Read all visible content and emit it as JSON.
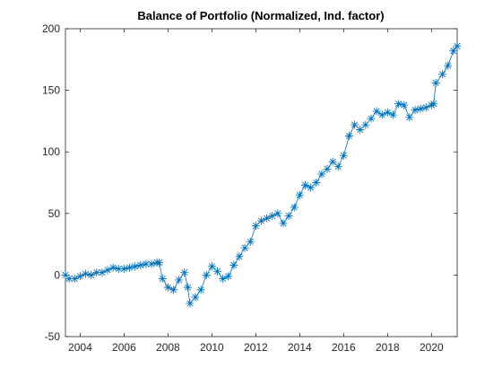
{
  "chart_data": {
    "type": "line",
    "title": "Balance of Portfolio (Normalized, Ind. factor)",
    "x": [
      2003.33,
      2003.5,
      2003.75,
      2004,
      2004.25,
      2004.5,
      2004.75,
      2005,
      2005.25,
      2005.5,
      2005.75,
      2006,
      2006.25,
      2006.5,
      2006.75,
      2007,
      2007.25,
      2007.5,
      2007.6,
      2007.75,
      2008,
      2008.25,
      2008.5,
      2008.75,
      2008.9,
      2009,
      2009.25,
      2009.5,
      2009.75,
      2010,
      2010.25,
      2010.5,
      2010.75,
      2011,
      2011.25,
      2011.5,
      2011.75,
      2012,
      2012.25,
      2012.5,
      2012.75,
      2013,
      2013.25,
      2013.5,
      2013.75,
      2014,
      2014.25,
      2014.5,
      2014.75,
      2015,
      2015.25,
      2015.5,
      2015.75,
      2016,
      2016.25,
      2016.5,
      2016.75,
      2017,
      2017.25,
      2017.5,
      2017.75,
      2018,
      2018.25,
      2018.5,
      2018.75,
      2019,
      2019.25,
      2019.5,
      2019.75,
      2020,
      2020.1,
      2020.2,
      2020.5,
      2020.75,
      2021,
      2021.17
    ],
    "series": [
      {
        "color": "#0072bd",
        "values": [
          0,
          -3,
          -3,
          -1,
          1,
          0,
          2,
          2,
          4,
          6,
          5,
          5,
          6,
          7,
          8,
          9,
          9,
          10,
          10,
          -3,
          -10,
          -12,
          -4,
          2,
          -10,
          -23,
          -18,
          -12,
          0,
          7,
          3,
          -3,
          -1,
          8,
          15,
          22,
          27,
          40,
          44,
          46,
          48,
          50,
          42,
          48,
          55,
          65,
          73,
          71,
          75,
          82,
          86,
          92,
          88,
          97,
          113,
          122,
          118,
          122,
          127,
          133,
          130,
          132,
          130,
          139,
          138,
          128,
          134,
          135,
          136,
          138,
          139,
          156,
          163,
          170,
          182,
          186
        ]
      }
    ],
    "xlim": [
      2003.33,
      2021.17
    ],
    "ylim": [
      -50,
      200
    ],
    "xticks": [
      2004,
      2006,
      2008,
      2010,
      2012,
      2014,
      2016,
      2018,
      2020
    ],
    "yticks": [
      -50,
      0,
      50,
      100,
      150,
      200
    ]
  }
}
